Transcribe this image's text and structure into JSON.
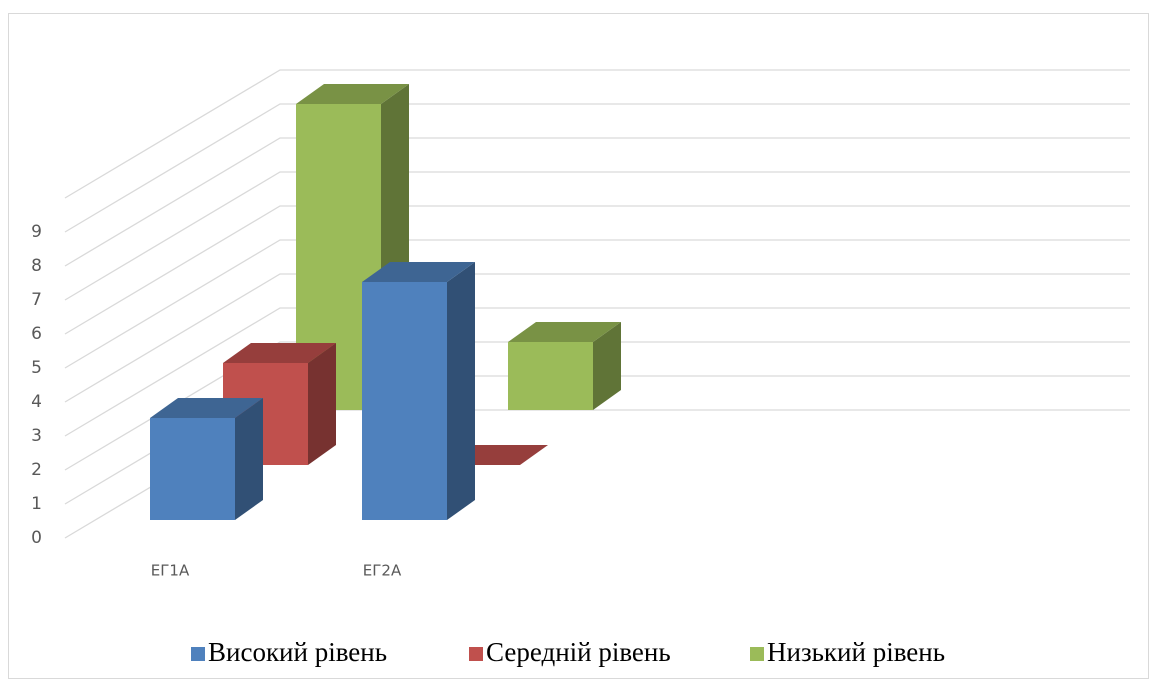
{
  "chart_data": {
    "type": "bar3d",
    "categories": [
      "ЕГ1А",
      "ЕГ2А"
    ],
    "series": [
      {
        "name": "Високий рівень",
        "color": "#4f81bd",
        "values": [
          3,
          7
        ]
      },
      {
        "name": "Середній рівень",
        "color": "#c0504d",
        "values": [
          3,
          0
        ]
      },
      {
        "name": "Низький рівень",
        "color": "#9bbb59",
        "values": [
          9,
          2
        ]
      }
    ],
    "ylim": [
      0,
      10
    ],
    "yticks": [
      0,
      1,
      2,
      3,
      4,
      5,
      6,
      7,
      8,
      9
    ],
    "grid": true,
    "legend": "bottom"
  }
}
